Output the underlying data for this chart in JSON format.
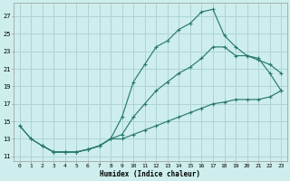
{
  "xlabel": "Humidex (Indice chaleur)",
  "bg_color": "#cdeeed",
  "grid_color": "#aed4d3",
  "line_color": "#2a7a6a",
  "curve1_x": [
    0,
    1,
    2,
    3,
    4,
    5,
    6,
    7,
    8,
    9,
    10,
    11,
    12,
    13,
    14,
    15,
    16,
    17,
    18,
    19,
    20,
    21,
    22,
    23
  ],
  "curve1_y": [
    14.5,
    13.0,
    12.2,
    11.5,
    11.5,
    11.5,
    11.8,
    12.2,
    13.0,
    15.5,
    19.5,
    21.5,
    23.5,
    24.2,
    25.5,
    26.2,
    27.5,
    27.8,
    24.8,
    23.5,
    22.5,
    22.2,
    20.5,
    18.5
  ],
  "curve2_x": [
    2,
    3,
    4,
    5,
    6,
    7,
    8,
    9,
    10,
    11,
    12,
    13,
    14,
    15,
    16,
    17,
    18,
    19,
    20,
    21,
    22,
    23
  ],
  "curve2_y": [
    12.2,
    11.5,
    11.5,
    11.5,
    11.8,
    12.2,
    13.0,
    13.5,
    15.5,
    17.0,
    18.5,
    19.5,
    20.5,
    21.2,
    22.2,
    23.5,
    23.5,
    22.5,
    22.5,
    22.0,
    21.5,
    20.5
  ],
  "curve3_x": [
    0,
    1,
    2,
    3,
    4,
    5,
    6,
    7,
    8,
    9,
    10,
    11,
    12,
    13,
    14,
    15,
    16,
    17,
    18,
    19,
    20,
    21,
    22,
    23
  ],
  "curve3_y": [
    14.5,
    13.0,
    12.2,
    11.5,
    11.5,
    11.5,
    11.8,
    12.2,
    13.0,
    13.0,
    13.5,
    14.0,
    14.5,
    15.0,
    15.5,
    16.0,
    16.5,
    17.0,
    17.2,
    17.5,
    17.5,
    17.5,
    17.8,
    18.5
  ],
  "xlim": [
    -0.5,
    23.5
  ],
  "ylim": [
    10.5,
    28.5
  ],
  "yticks": [
    11,
    13,
    15,
    17,
    19,
    21,
    23,
    25,
    27
  ],
  "xticks": [
    0,
    1,
    2,
    3,
    4,
    5,
    6,
    7,
    8,
    9,
    10,
    11,
    12,
    13,
    14,
    15,
    16,
    17,
    18,
    19,
    20,
    21,
    22,
    23
  ]
}
